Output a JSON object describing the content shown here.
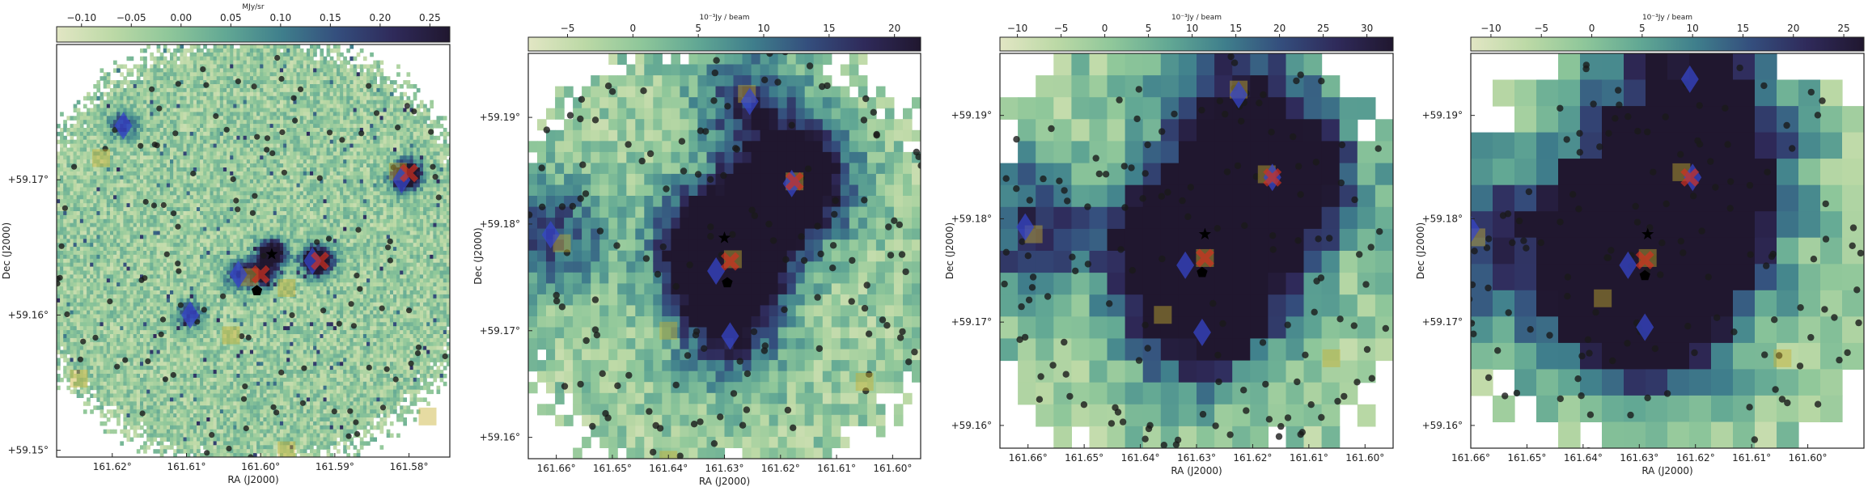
{
  "chart_data": [
    {
      "type": "heatmap",
      "colorbar_label": "MJy/sr",
      "colorbar_ticks": [
        "−0.10",
        "−0.05",
        "0.00",
        "0.05",
        "0.10",
        "0.15",
        "0.20",
        "0.25"
      ],
      "colorbar_values": [
        -0.1,
        -0.05,
        0.0,
        0.05,
        0.1,
        0.15,
        0.2,
        0.25
      ],
      "colorbar_range": [
        -0.125,
        0.27
      ],
      "xlabel": "RA (J2000)",
      "ylabel": "Dec (J2000)",
      "xticks": [
        "161.62°",
        "161.61°",
        "161.60°",
        "161.59°",
        "161.58°"
      ],
      "xtick_values": [
        161.62,
        161.61,
        161.6,
        161.59,
        161.58
      ],
      "yticks": [
        "+59.15°",
        "+59.16°",
        "+59.17°"
      ],
      "ytick_values": [
        59.15,
        59.16,
        59.17
      ],
      "xlim": [
        161.6275,
        161.5745
      ],
      "ylim": [
        59.1495,
        59.18
      ],
      "pixel_scale": 0.00045,
      "squares": [
        [
          161.6215,
          59.1716
        ],
        [
          161.6015,
          59.1628
        ],
        [
          161.5965,
          59.162
        ],
        [
          161.604,
          59.1585
        ],
        [
          161.6245,
          59.1553
        ],
        [
          161.5775,
          59.1525
        ],
        [
          161.5965,
          59.15
        ],
        [
          161.5815,
          59.1706
        ]
      ],
      "diamonds": [
        [
          161.6185,
          59.174
        ],
        [
          161.603,
          59.163
        ],
        [
          161.593,
          59.164
        ],
        [
          161.6095,
          59.16
        ],
        [
          161.581,
          59.17
        ]
      ],
      "crosses": [
        [
          161.6,
          59.163
        ],
        [
          161.592,
          59.164
        ],
        [
          161.58,
          59.1705
        ]
      ],
      "stars": [
        [
          161.5985,
          59.1645
        ]
      ],
      "pentagons": [
        [
          161.6005,
          59.1618
        ]
      ]
    },
    {
      "type": "heatmap",
      "colorbar_label": "10⁻³Jy / beam",
      "colorbar_ticks": [
        "−5",
        "0",
        "5",
        "10",
        "15",
        "20"
      ],
      "colorbar_values": [
        -5,
        0,
        5,
        10,
        15,
        20
      ],
      "colorbar_range": [
        -8,
        22
      ],
      "xlabel": "RA (J2000)",
      "ylabel": "Dec (J2000)",
      "xticks": [
        "161.66°",
        "161.65°",
        "161.64°",
        "161.63°",
        "161.62°",
        "161.61°",
        "161.60°"
      ],
      "xtick_values": [
        161.66,
        161.65,
        161.64,
        161.63,
        161.62,
        161.61,
        161.6
      ],
      "yticks": [
        "+59.16°",
        "+59.17°",
        "+59.18°",
        "+59.19°"
      ],
      "ytick_values": [
        59.16,
        59.17,
        59.18,
        59.19
      ],
      "xlim": [
        161.665,
        161.595
      ],
      "ylim": [
        59.158,
        59.196
      ],
      "pixel_scale": 0.0016,
      "squares": [
        [
          161.626,
          59.1922
        ],
        [
          161.6175,
          59.184
        ],
        [
          161.659,
          59.1782
        ],
        [
          161.6285,
          59.1767
        ],
        [
          161.64,
          59.17
        ],
        [
          161.605,
          59.1652
        ],
        [
          161.64,
          59.1579
        ]
      ],
      "diamonds": [
        [
          161.6255,
          59.1915
        ],
        [
          161.618,
          59.1838
        ],
        [
          161.661,
          59.179
        ],
        [
          161.6315,
          59.1756
        ],
        [
          161.629,
          59.1695
        ]
      ],
      "crosses": [
        [
          161.6175,
          59.184
        ],
        [
          161.629,
          59.1765
        ]
      ],
      "stars": [
        [
          161.63,
          59.1787
        ]
      ],
      "pentagons": [
        [
          161.6295,
          59.1745
        ]
      ]
    },
    {
      "type": "heatmap",
      "colorbar_label": "10⁻³Jy / beam",
      "colorbar_ticks": [
        "−10",
        "−5",
        "0",
        "5",
        "10",
        "15",
        "20",
        "25",
        "30"
      ],
      "colorbar_values": [
        -10,
        -5,
        0,
        5,
        10,
        15,
        20,
        25,
        30
      ],
      "colorbar_range": [
        -12,
        33
      ],
      "xlabel": "RA (J2000)",
      "ylabel": "Dec (J2000)",
      "xticks": [
        "161.66°",
        "161.65°",
        "161.64°",
        "161.63°",
        "161.62°",
        "161.61°",
        "161.60°"
      ],
      "xtick_values": [
        161.66,
        161.65,
        161.64,
        161.63,
        161.62,
        161.61,
        161.6
      ],
      "yticks": [
        "+59.16°",
        "+59.17°",
        "+59.18°",
        "+59.19°"
      ],
      "ytick_values": [
        59.16,
        59.17,
        59.18,
        59.19
      ],
      "xlim": [
        161.665,
        161.595
      ],
      "ylim": [
        59.1578,
        59.196
      ],
      "pixel_scale": 0.0032,
      "squares": [
        [
          161.6225,
          59.1925
        ],
        [
          161.6175,
          59.1843
        ],
        [
          161.659,
          59.1785
        ],
        [
          161.6285,
          59.1762
        ],
        [
          161.636,
          59.1707
        ],
        [
          161.606,
          59.1665
        ]
      ],
      "diamonds": [
        [
          161.6225,
          59.192
        ],
        [
          161.6165,
          59.184
        ],
        [
          161.6605,
          59.1792
        ],
        [
          161.632,
          59.1755
        ],
        [
          161.629,
          59.169
        ]
      ],
      "crosses": [
        [
          161.6165,
          59.184
        ],
        [
          161.6285,
          59.1762
        ]
      ],
      "stars": [
        [
          161.6285,
          59.1785
        ]
      ],
      "pentagons": [
        [
          161.629,
          59.1748
        ]
      ]
    },
    {
      "type": "heatmap",
      "colorbar_label": "10⁻³Jy / beam",
      "colorbar_ticks": [
        "−10",
        "−5",
        "0",
        "5",
        "10",
        "15",
        "20",
        "25"
      ],
      "colorbar_values": [
        -10,
        -5,
        0,
        5,
        10,
        15,
        20,
        25
      ],
      "colorbar_range": [
        -12,
        27
      ],
      "xlabel": "RA (J2000)",
      "ylabel": "Dec (J2000)",
      "xticks": [
        "161.66°",
        "161.65°",
        "161.64°",
        "161.63°",
        "161.62°",
        "161.61°",
        "161.60°"
      ],
      "xtick_values": [
        161.66,
        161.65,
        161.64,
        161.63,
        161.62,
        161.61,
        161.6
      ],
      "yticks": [
        "+59.16°",
        "+59.17°",
        "+59.18°",
        "+59.19°"
      ],
      "ytick_values": [
        59.16,
        59.17,
        59.18,
        59.19
      ],
      "xlim": [
        161.66,
        161.59
      ],
      "ylim": [
        59.1578,
        59.196
      ],
      "pixel_scale": 0.0038,
      "squares": [
        [
          161.6225,
          59.1845
        ],
        [
          161.659,
          59.1782
        ],
        [
          161.6365,
          59.1723
        ],
        [
          161.6285,
          59.1762
        ],
        [
          161.6045,
          59.1665
        ],
        [
          161.6365,
          59.1568
        ]
      ],
      "diamonds": [
        [
          161.621,
          59.1935
        ],
        [
          161.66,
          59.179
        ],
        [
          161.632,
          59.1755
        ],
        [
          161.629,
          59.1695
        ],
        [
          161.6205,
          59.184
        ]
      ],
      "crosses": [
        [
          161.621,
          59.184
        ],
        [
          161.629,
          59.176
        ]
      ],
      "stars": [
        [
          161.6285,
          59.1785
        ]
      ],
      "pentagons": [
        [
          161.629,
          59.1745
        ]
      ]
    }
  ],
  "colors": {
    "colormap": [
      "#e2e6c4",
      "#bcd9a6",
      "#8fc79a",
      "#62a894",
      "#3f7f8c",
      "#344e7d",
      "#2f2a5a",
      "#20172f"
    ],
    "square_marker": "#c8b030",
    "diamond_marker": "#3546c8",
    "cross_marker": "#d03020",
    "source_dot": "#1a1a1a",
    "star_marker": "#000000"
  }
}
